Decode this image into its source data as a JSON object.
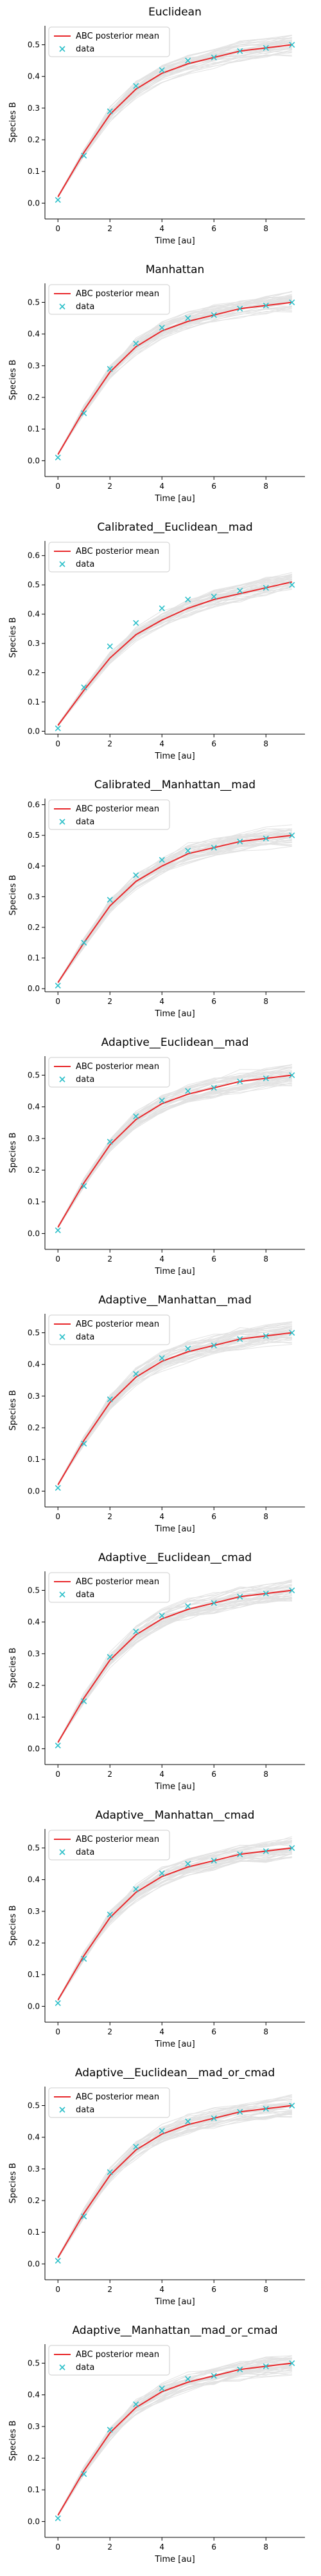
{
  "chart_data": [
    {
      "type": "line",
      "title": "Euclidean",
      "xlabel": "Time [au]",
      "ylabel": "Species B",
      "xlim": [
        -0.5,
        9.5
      ],
      "ylim": [
        -0.05,
        0.56
      ],
      "xticks": [
        0,
        2,
        4,
        6,
        8
      ],
      "yticks": [
        0.0,
        0.1,
        0.2,
        0.3,
        0.4,
        0.5
      ],
      "legend": {
        "position": "top-left",
        "entries": [
          "ABC posterior mean",
          "data"
        ]
      },
      "series": [
        {
          "name": "ABC posterior mean",
          "x": [
            0,
            1,
            2,
            3,
            4,
            5,
            6,
            7,
            8,
            9
          ],
          "y": [
            0.02,
            0.16,
            0.28,
            0.36,
            0.41,
            0.44,
            0.46,
            0.48,
            0.49,
            0.5
          ]
        },
        {
          "name": "data",
          "x": [
            0,
            1,
            2,
            3,
            4,
            5,
            6,
            7,
            8,
            9
          ],
          "y": [
            0.01,
            0.15,
            0.29,
            0.37,
            0.42,
            0.45,
            0.46,
            0.48,
            0.49,
            0.5
          ]
        }
      ]
    },
    {
      "type": "line",
      "title": "Manhattan",
      "xlabel": "Time [au]",
      "ylabel": "Species B",
      "xlim": [
        -0.5,
        9.5
      ],
      "ylim": [
        -0.05,
        0.56
      ],
      "xticks": [
        0,
        2,
        4,
        6,
        8
      ],
      "yticks": [
        0.0,
        0.1,
        0.2,
        0.3,
        0.4,
        0.5
      ],
      "legend": {
        "position": "top-left",
        "entries": [
          "ABC posterior mean",
          "data"
        ]
      },
      "series": [
        {
          "name": "ABC posterior mean",
          "x": [
            0,
            1,
            2,
            3,
            4,
            5,
            6,
            7,
            8,
            9
          ],
          "y": [
            0.02,
            0.16,
            0.28,
            0.36,
            0.41,
            0.44,
            0.46,
            0.48,
            0.49,
            0.5
          ]
        },
        {
          "name": "data",
          "x": [
            0,
            1,
            2,
            3,
            4,
            5,
            6,
            7,
            8,
            9
          ],
          "y": [
            0.01,
            0.15,
            0.29,
            0.37,
            0.42,
            0.45,
            0.46,
            0.48,
            0.49,
            0.5
          ]
        }
      ]
    },
    {
      "type": "line",
      "title": "Calibrated__Euclidean__mad",
      "xlabel": "Time [au]",
      "ylabel": "Species B",
      "xlim": [
        -0.5,
        9.5
      ],
      "ylim": [
        -0.01,
        0.65
      ],
      "xticks": [
        0,
        2,
        4,
        6,
        8
      ],
      "yticks": [
        0.0,
        0.1,
        0.2,
        0.3,
        0.4,
        0.5,
        0.6
      ],
      "legend": {
        "position": "top-left",
        "entries": [
          "ABC posterior mean",
          "data"
        ]
      },
      "series": [
        {
          "name": "ABC posterior mean",
          "x": [
            0,
            1,
            2,
            3,
            4,
            5,
            6,
            7,
            8,
            9
          ],
          "y": [
            0.02,
            0.14,
            0.25,
            0.33,
            0.38,
            0.42,
            0.45,
            0.47,
            0.49,
            0.51
          ]
        },
        {
          "name": "data",
          "x": [
            0,
            1,
            2,
            3,
            4,
            5,
            6,
            7,
            8,
            9
          ],
          "y": [
            0.01,
            0.15,
            0.29,
            0.37,
            0.42,
            0.45,
            0.46,
            0.48,
            0.49,
            0.5
          ]
        }
      ]
    },
    {
      "type": "line",
      "title": "Calibrated__Manhattan__mad",
      "xlabel": "Time [au]",
      "ylabel": "Species B",
      "xlim": [
        -0.5,
        9.5
      ],
      "ylim": [
        -0.01,
        0.62
      ],
      "xticks": [
        0,
        2,
        4,
        6,
        8
      ],
      "yticks": [
        0.0,
        0.1,
        0.2,
        0.3,
        0.4,
        0.5,
        0.6
      ],
      "legend": {
        "position": "top-left",
        "entries": [
          "ABC posterior mean",
          "data"
        ]
      },
      "series": [
        {
          "name": "ABC posterior mean",
          "x": [
            0,
            1,
            2,
            3,
            4,
            5,
            6,
            7,
            8,
            9
          ],
          "y": [
            0.02,
            0.15,
            0.27,
            0.35,
            0.4,
            0.44,
            0.46,
            0.48,
            0.49,
            0.5
          ]
        },
        {
          "name": "data",
          "x": [
            0,
            1,
            2,
            3,
            4,
            5,
            6,
            7,
            8,
            9
          ],
          "y": [
            0.01,
            0.15,
            0.29,
            0.37,
            0.42,
            0.45,
            0.46,
            0.48,
            0.49,
            0.5
          ]
        }
      ]
    },
    {
      "type": "line",
      "title": "Adaptive__Euclidean__mad",
      "xlabel": "Time [au]",
      "ylabel": "Species B",
      "xlim": [
        -0.5,
        9.5
      ],
      "ylim": [
        -0.05,
        0.56
      ],
      "xticks": [
        0,
        2,
        4,
        6,
        8
      ],
      "yticks": [
        0.0,
        0.1,
        0.2,
        0.3,
        0.4,
        0.5
      ],
      "legend": {
        "position": "top-left",
        "entries": [
          "ABC posterior mean",
          "data"
        ]
      },
      "series": [
        {
          "name": "ABC posterior mean",
          "x": [
            0,
            1,
            2,
            3,
            4,
            5,
            6,
            7,
            8,
            9
          ],
          "y": [
            0.02,
            0.16,
            0.28,
            0.36,
            0.41,
            0.44,
            0.46,
            0.48,
            0.49,
            0.5
          ]
        },
        {
          "name": "data",
          "x": [
            0,
            1,
            2,
            3,
            4,
            5,
            6,
            7,
            8,
            9
          ],
          "y": [
            0.01,
            0.15,
            0.29,
            0.37,
            0.42,
            0.45,
            0.46,
            0.48,
            0.49,
            0.5
          ]
        }
      ]
    },
    {
      "type": "line",
      "title": "Adaptive__Manhattan__mad",
      "xlabel": "Time [au]",
      "ylabel": "Species B",
      "xlim": [
        -0.5,
        9.5
      ],
      "ylim": [
        -0.05,
        0.56
      ],
      "xticks": [
        0,
        2,
        4,
        6,
        8
      ],
      "yticks": [
        0.0,
        0.1,
        0.2,
        0.3,
        0.4,
        0.5
      ],
      "legend": {
        "position": "top-left",
        "entries": [
          "ABC posterior mean",
          "data"
        ]
      },
      "series": [
        {
          "name": "ABC posterior mean",
          "x": [
            0,
            1,
            2,
            3,
            4,
            5,
            6,
            7,
            8,
            9
          ],
          "y": [
            0.02,
            0.16,
            0.28,
            0.36,
            0.41,
            0.44,
            0.46,
            0.48,
            0.49,
            0.5
          ]
        },
        {
          "name": "data",
          "x": [
            0,
            1,
            2,
            3,
            4,
            5,
            6,
            7,
            8,
            9
          ],
          "y": [
            0.01,
            0.15,
            0.29,
            0.37,
            0.42,
            0.45,
            0.46,
            0.48,
            0.49,
            0.5
          ]
        }
      ]
    },
    {
      "type": "line",
      "title": "Adaptive__Euclidean__cmad",
      "xlabel": "Time [au]",
      "ylabel": "Species B",
      "xlim": [
        -0.5,
        9.5
      ],
      "ylim": [
        -0.05,
        0.56
      ],
      "xticks": [
        0,
        2,
        4,
        6,
        8
      ],
      "yticks": [
        0.0,
        0.1,
        0.2,
        0.3,
        0.4,
        0.5
      ],
      "legend": {
        "position": "top-left",
        "entries": [
          "ABC posterior mean",
          "data"
        ]
      },
      "series": [
        {
          "name": "ABC posterior mean",
          "x": [
            0,
            1,
            2,
            3,
            4,
            5,
            6,
            7,
            8,
            9
          ],
          "y": [
            0.02,
            0.16,
            0.28,
            0.36,
            0.41,
            0.44,
            0.46,
            0.48,
            0.49,
            0.5
          ]
        },
        {
          "name": "data",
          "x": [
            0,
            1,
            2,
            3,
            4,
            5,
            6,
            7,
            8,
            9
          ],
          "y": [
            0.01,
            0.15,
            0.29,
            0.37,
            0.42,
            0.45,
            0.46,
            0.48,
            0.49,
            0.5
          ]
        }
      ]
    },
    {
      "type": "line",
      "title": "Adaptive__Manhattan__cmad",
      "xlabel": "Time [au]",
      "ylabel": "Species B",
      "xlim": [
        -0.5,
        9.5
      ],
      "ylim": [
        -0.05,
        0.56
      ],
      "xticks": [
        0,
        2,
        4,
        6,
        8
      ],
      "yticks": [
        0.0,
        0.1,
        0.2,
        0.3,
        0.4,
        0.5
      ],
      "legend": {
        "position": "top-left",
        "entries": [
          "ABC posterior mean",
          "data"
        ]
      },
      "series": [
        {
          "name": "ABC posterior mean",
          "x": [
            0,
            1,
            2,
            3,
            4,
            5,
            6,
            7,
            8,
            9
          ],
          "y": [
            0.02,
            0.16,
            0.28,
            0.36,
            0.41,
            0.44,
            0.46,
            0.48,
            0.49,
            0.5
          ]
        },
        {
          "name": "data",
          "x": [
            0,
            1,
            2,
            3,
            4,
            5,
            6,
            7,
            8,
            9
          ],
          "y": [
            0.01,
            0.15,
            0.29,
            0.37,
            0.42,
            0.45,
            0.46,
            0.48,
            0.49,
            0.5
          ]
        }
      ]
    },
    {
      "type": "line",
      "title": "Adaptive__Euclidean__mad_or_cmad",
      "xlabel": "Time [au]",
      "ylabel": "Species B",
      "xlim": [
        -0.5,
        9.5
      ],
      "ylim": [
        -0.05,
        0.56
      ],
      "xticks": [
        0,
        2,
        4,
        6,
        8
      ],
      "yticks": [
        0.0,
        0.1,
        0.2,
        0.3,
        0.4,
        0.5
      ],
      "legend": {
        "position": "top-left",
        "entries": [
          "ABC posterior mean",
          "data"
        ]
      },
      "series": [
        {
          "name": "ABC posterior mean",
          "x": [
            0,
            1,
            2,
            3,
            4,
            5,
            6,
            7,
            8,
            9
          ],
          "y": [
            0.02,
            0.16,
            0.28,
            0.36,
            0.41,
            0.44,
            0.46,
            0.48,
            0.49,
            0.5
          ]
        },
        {
          "name": "data",
          "x": [
            0,
            1,
            2,
            3,
            4,
            5,
            6,
            7,
            8,
            9
          ],
          "y": [
            0.01,
            0.15,
            0.29,
            0.37,
            0.42,
            0.45,
            0.46,
            0.48,
            0.49,
            0.5
          ]
        }
      ]
    },
    {
      "type": "line",
      "title": "Adaptive__Manhattan__mad_or_cmad",
      "xlabel": "Time [au]",
      "ylabel": "Species B",
      "xlim": [
        -0.5,
        9.5
      ],
      "ylim": [
        -0.05,
        0.56
      ],
      "xticks": [
        0,
        2,
        4,
        6,
        8
      ],
      "yticks": [
        0.0,
        0.1,
        0.2,
        0.3,
        0.4,
        0.5
      ],
      "legend": {
        "position": "top-left",
        "entries": [
          "ABC posterior mean",
          "data"
        ]
      },
      "series": [
        {
          "name": "ABC posterior mean",
          "x": [
            0,
            1,
            2,
            3,
            4,
            5,
            6,
            7,
            8,
            9
          ],
          "y": [
            0.02,
            0.16,
            0.28,
            0.36,
            0.41,
            0.44,
            0.46,
            0.48,
            0.49,
            0.5
          ]
        },
        {
          "name": "data",
          "x": [
            0,
            1,
            2,
            3,
            4,
            5,
            6,
            7,
            8,
            9
          ],
          "y": [
            0.01,
            0.15,
            0.29,
            0.37,
            0.42,
            0.45,
            0.46,
            0.48,
            0.49,
            0.5
          ]
        }
      ]
    }
  ],
  "colors": {
    "posterior_mean": "#e8282b",
    "data": "#2bbfc9",
    "posterior_samples": "#9a9a9a"
  }
}
